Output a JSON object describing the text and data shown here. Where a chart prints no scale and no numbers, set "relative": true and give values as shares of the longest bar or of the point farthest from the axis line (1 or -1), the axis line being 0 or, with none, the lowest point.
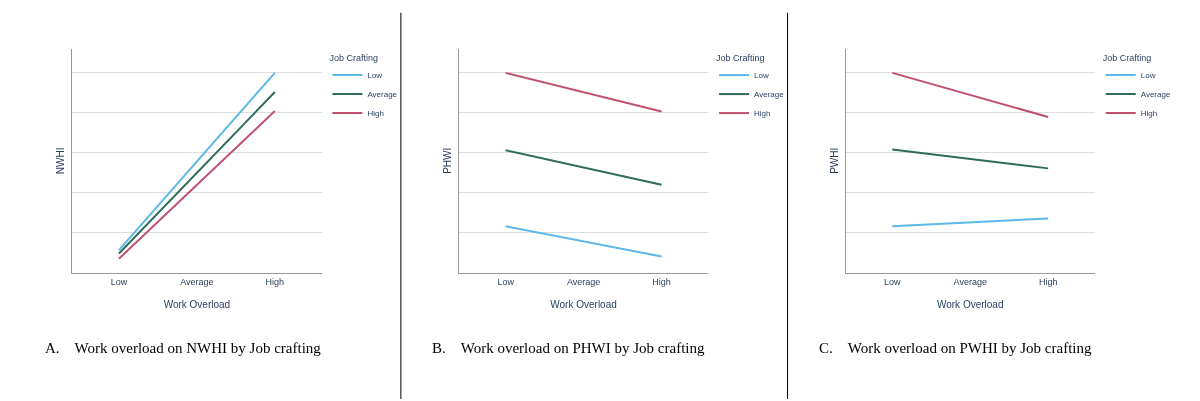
{
  "chart_data": [
    {
      "type": "line",
      "relative": true,
      "xlabel": "Work Overload",
      "ylabel": "NWHI",
      "legend_title": "Job Crafting",
      "legend": "top right",
      "grid": "y",
      "tick_labels": "x",
      "marker": "none",
      "line_style": "solid",
      "categories": [
        "Low",
        "Average",
        "High"
      ],
      "series": [
        {
          "name": "Low",
          "color": "#5bb8e8",
          "values": [
            0.113,
            null,
            1.0
          ]
        },
        {
          "name": "Average",
          "color": "#2e6b5a",
          "values": [
            0.096,
            null,
            0.904
          ]
        },
        {
          "name": "High",
          "color": "#c0506e",
          "values": [
            0.07,
            null,
            0.809
          ]
        }
      ],
      "annotations": [
        "A. Work overload on NWHI by Job crafting"
      ]
    },
    {
      "type": "line",
      "relative": true,
      "xlabel": "Work Overload",
      "ylabel": "PHWI",
      "legend_title": "Job Crafting",
      "legend": "top right",
      "grid": "y",
      "tick_labels": "x",
      "marker": "none",
      "line_style": "solid",
      "categories": [
        "Low",
        "Average",
        "High"
      ],
      "series": [
        {
          "name": "Low",
          "color": "#5bb8e8",
          "values": [
            0.232,
            null,
            0.081
          ]
        },
        {
          "name": "Average",
          "color": "#2e6b5a",
          "values": [
            0.613,
            null,
            0.44
          ]
        },
        {
          "name": "High",
          "color": "#c0506e",
          "values": [
            1.0,
            null,
            0.807
          ]
        }
      ],
      "annotations": [
        "B. Work overload on PHWI by Job crafting"
      ]
    },
    {
      "type": "line",
      "relative": true,
      "xlabel": "Work Overload",
      "ylabel": "PWHI",
      "legend_title": "Job Crafting",
      "legend": "top right",
      "grid": "y",
      "tick_labels": "x",
      "marker": "none",
      "line_style": "solid",
      "categories": [
        "Low",
        "Average",
        "High"
      ],
      "series": [
        {
          "name": "Low",
          "color": "#5bb8e8",
          "values": [
            0.233,
            null,
            0.271
          ]
        },
        {
          "name": "Average",
          "color": "#2e6b5a",
          "values": [
            0.617,
            null,
            0.522
          ]
        },
        {
          "name": "High",
          "color": "#c0506e",
          "values": [
            1.0,
            null,
            0.779
          ]
        }
      ],
      "annotations": [
        "C. Work overload on PWHI by Job crafting"
      ]
    }
  ]
}
